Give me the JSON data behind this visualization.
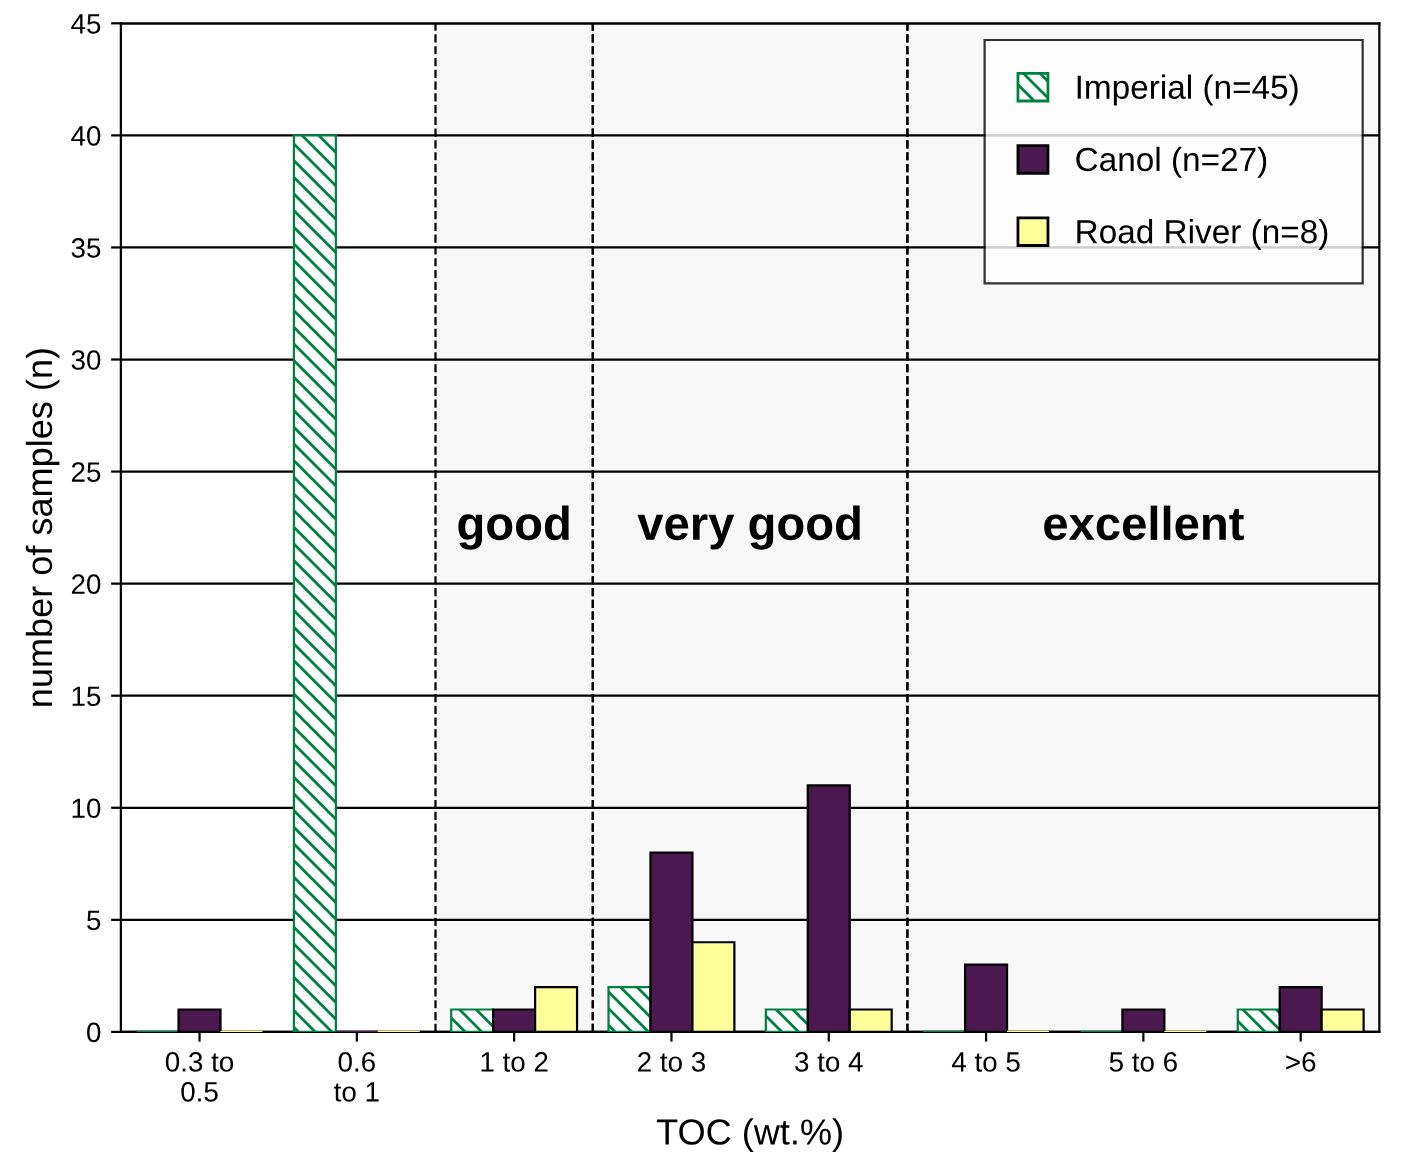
{
  "chart_data": {
    "type": "bar",
    "xlabel": "TOC (wt.%)",
    "ylabel": "number of samples (n)",
    "categories": [
      "0.3 to\n0.5",
      "0.6\nto 1",
      "1 to 2",
      "2 to 3",
      "3 to 4",
      "4 to 5",
      "5 to 6",
      ">6"
    ],
    "series": [
      {
        "name": "Imperial (n=45)",
        "color": "#008040",
        "values": [
          0,
          40,
          1,
          2,
          1,
          0,
          0,
          1
        ]
      },
      {
        "name": "Canol (n=27)",
        "color": "#4b1850",
        "values": [
          1,
          0,
          1,
          8,
          11,
          3,
          1,
          2
        ]
      },
      {
        "name": "Road River (n=8)",
        "color": "#ffff99",
        "values": [
          0,
          0,
          2,
          4,
          1,
          0,
          0,
          1
        ]
      }
    ],
    "ylim": [
      0,
      45
    ],
    "yticks": [
      0,
      5,
      10,
      15,
      20,
      25,
      30,
      35,
      40,
      45
    ],
    "grid": "y",
    "legend": "top right",
    "bands": [
      {
        "axis": "x",
        "from": "1 to 2",
        "to": "1 to 2",
        "label": "good",
        "color": "#f8f8f8"
      },
      {
        "axis": "x",
        "from": "2 to 3",
        "to": "3 to 4",
        "label": "very good",
        "color": "#f8f8f8"
      },
      {
        "axis": "x",
        "from": "4 to 5",
        "to": ">6",
        "label": "excellent",
        "color": "#f8f8f8"
      }
    ]
  }
}
